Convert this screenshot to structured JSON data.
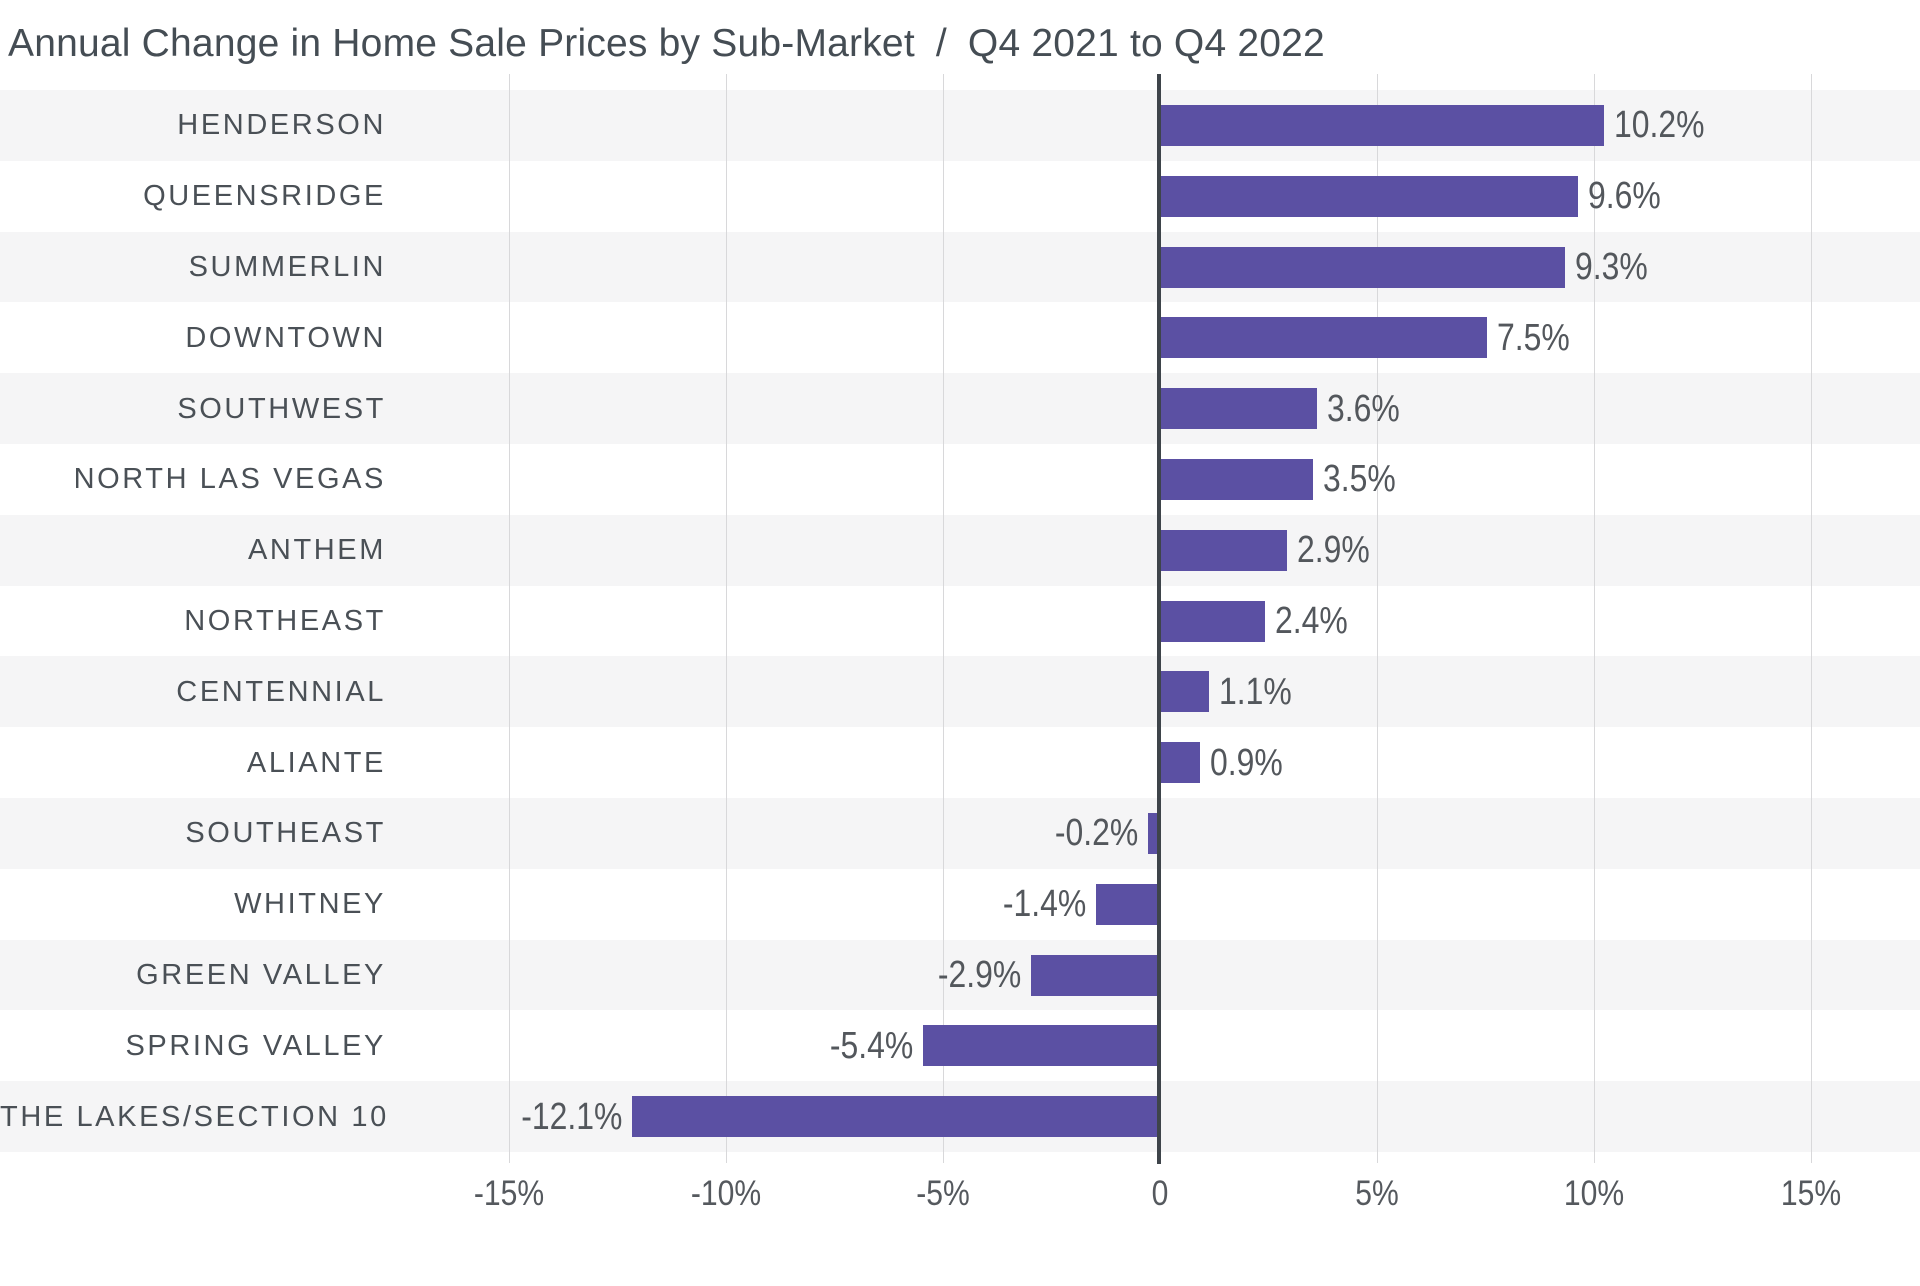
{
  "title": {
    "main": "Annual Change in Home Sale Prices by Sub-Market",
    "separator": "/",
    "period": "Q4 2021 to Q4 2022"
  },
  "chart_data": {
    "type": "bar",
    "orientation": "horizontal",
    "title": "Annual Change in Home Sale Prices by Sub-Market / Q4 2021 to Q4 2022",
    "categories": [
      "HENDERSON",
      "QUEENSRIDGE",
      "SUMMERLIN",
      "DOWNTOWN",
      "SOUTHWEST",
      "NORTH LAS VEGAS",
      "ANTHEM",
      "NORTHEAST",
      "CENTENNIAL",
      "ALIANTE",
      "SOUTHEAST",
      "WHITNEY",
      "GREEN VALLEY",
      "SPRING VALLEY",
      "THE LAKES/SECTION 10"
    ],
    "values": [
      10.2,
      9.6,
      9.3,
      7.5,
      3.6,
      3.5,
      2.9,
      2.4,
      1.1,
      0.9,
      -0.2,
      -1.4,
      -2.9,
      -5.4,
      -12.1
    ],
    "value_labels": [
      "10.2%",
      "9.6%",
      "9.3%",
      "7.5%",
      "3.6%",
      "3.5%",
      "2.9%",
      "2.4%",
      "1.1%",
      "0.9%",
      "-0.2%",
      "-1.4%",
      "-2.9%",
      "-5.4%",
      "-12.1%"
    ],
    "xlabel": "",
    "ylabel": "",
    "xlim": [
      -17.3,
      17.5
    ],
    "x_ticks": [
      -15,
      -10,
      -5,
      0,
      5,
      10,
      15
    ],
    "x_tick_labels": [
      "-15%",
      "-10%",
      "-5%",
      "0",
      "5%",
      "10%",
      "15%"
    ],
    "grid": true,
    "legend": false,
    "colors": {
      "bar": "#5b50a3",
      "stripe": "#f5f5f6",
      "gridline": "#d8d8da",
      "zero_line": "#3e444a",
      "title_text": "#454d54",
      "category_text": "#4a5056",
      "value_text": "#53575c",
      "tick_text": "#55595e"
    }
  }
}
